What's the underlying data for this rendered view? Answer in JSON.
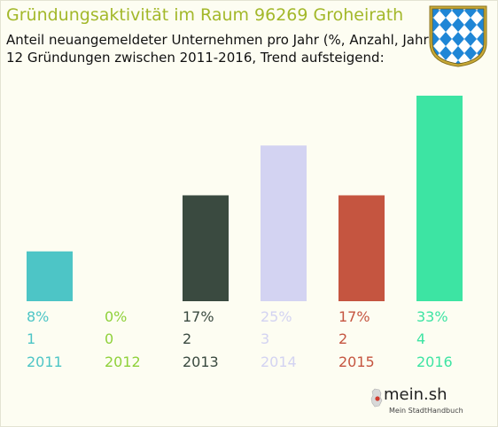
{
  "title": "Gründungsaktivität im Raum 96269 Groheirath",
  "subtitle_line1": "Anteil neuangemeldeter Unternehmen pro Jahr (%, Anzahl, Jahr)",
  "subtitle_line2": "12 Gründungen zwischen 2011-2016, Trend aufsteigend:",
  "logo": {
    "name": "mein.sh",
    "tagline": "Mein StadtHandbuch"
  },
  "chart_data": {
    "type": "bar",
    "categories": [
      "2011",
      "2012",
      "2013",
      "2014",
      "2015",
      "2016"
    ],
    "values": [
      8,
      0,
      17,
      25,
      17,
      33
    ],
    "percent_labels": [
      "8%",
      "0%",
      "17%",
      "25%",
      "17%",
      "33%"
    ],
    "counts": [
      1,
      0,
      2,
      3,
      2,
      4
    ],
    "colors": [
      "#4dc5c6",
      "#8fd13a",
      "#3a4a40",
      "#d3d3f2",
      "#c55540",
      "#3de4a3"
    ],
    "grid": false,
    "legend": "none"
  }
}
